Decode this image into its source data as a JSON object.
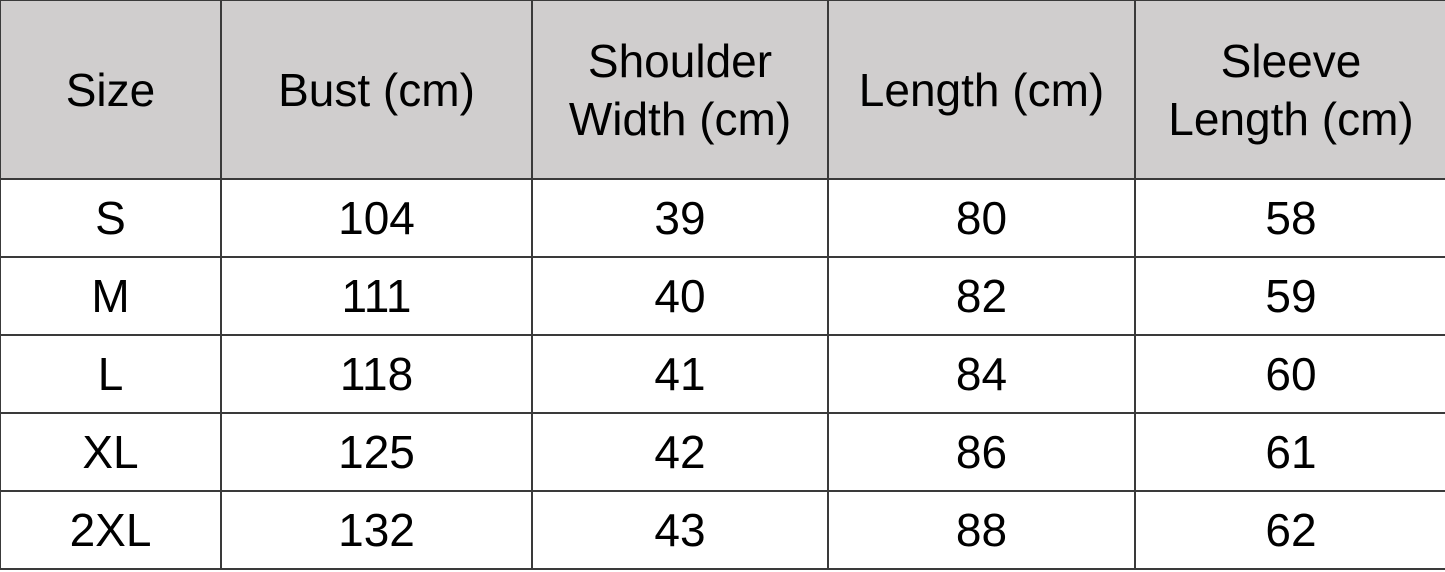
{
  "table": {
    "headers": [
      [
        "Size"
      ],
      [
        "Bust (cm)"
      ],
      [
        "Shoulder",
        "Width (cm)"
      ],
      [
        "Length (cm)"
      ],
      [
        "Sleeve",
        "Length (cm)"
      ]
    ],
    "rows": [
      [
        "S",
        "104",
        "39",
        "80",
        "58"
      ],
      [
        "M",
        "111",
        "40",
        "82",
        "59"
      ],
      [
        "L",
        "118",
        "41",
        "84",
        "60"
      ],
      [
        "XL",
        "125",
        "42",
        "86",
        "61"
      ],
      [
        "2XL",
        "132",
        "43",
        "88",
        "62"
      ]
    ],
    "header_bg": "#d0cece",
    "border_color": "#3a3a3a"
  }
}
